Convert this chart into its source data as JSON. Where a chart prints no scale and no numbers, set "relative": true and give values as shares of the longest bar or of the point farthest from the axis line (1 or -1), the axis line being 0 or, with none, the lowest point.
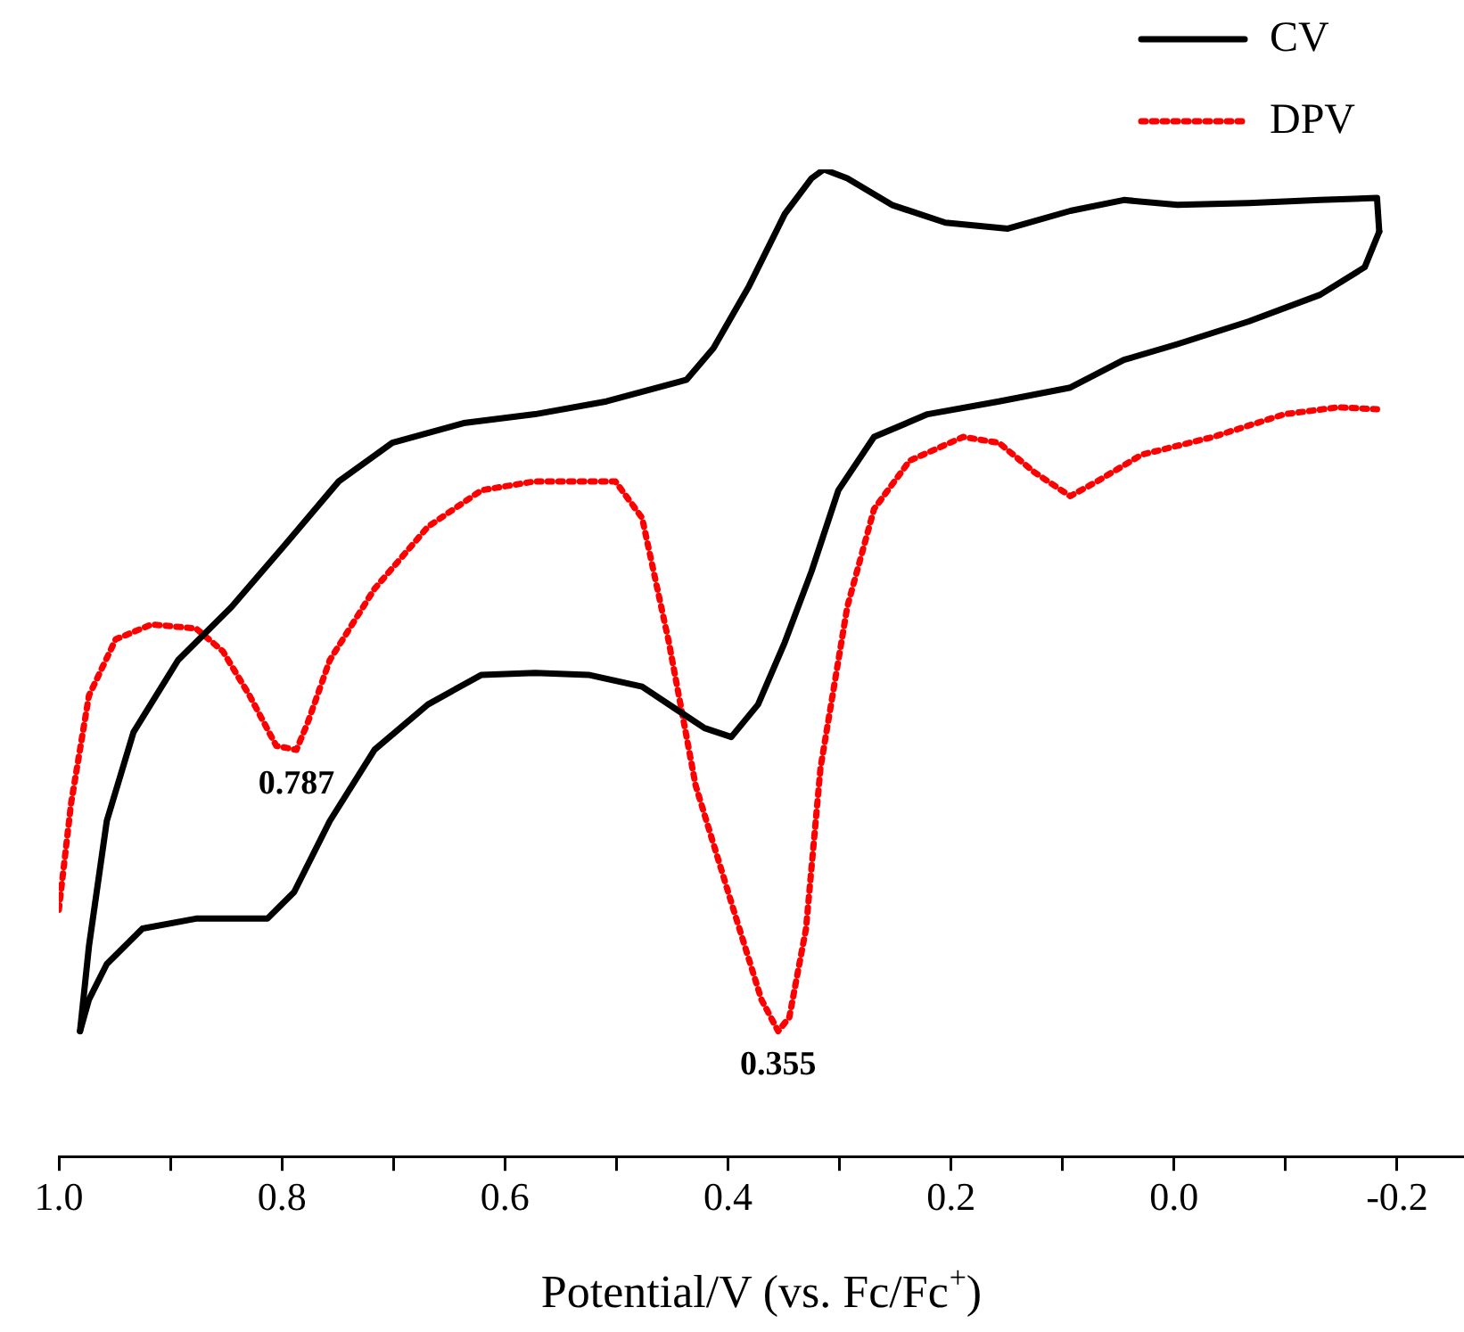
{
  "chart_data": {
    "type": "line",
    "relative": true,
    "xlabel": "Potential/V (vs. Fc/Fc$^{+}$)",
    "xlim": [
      1.0,
      -0.26
    ],
    "xticks": [
      {
        "value": 1.0,
        "label": "1.0"
      },
      {
        "value": 0.9,
        "label": null
      },
      {
        "value": 0.8,
        "label": "0.8"
      },
      {
        "value": 0.7,
        "label": null
      },
      {
        "value": 0.6,
        "label": "0.6"
      },
      {
        "value": 0.5,
        "label": null
      },
      {
        "value": 0.4,
        "label": "0.4"
      },
      {
        "value": 0.3,
        "label": null
      },
      {
        "value": 0.2,
        "label": "0.2"
      },
      {
        "value": 0.1,
        "label": null
      },
      {
        "value": 0.0,
        "label": "0.0"
      },
      {
        "value": -0.1,
        "label": null
      },
      {
        "value": -0.2,
        "label": "-0.2"
      }
    ],
    "tick_labels": "x",
    "grid": false,
    "legend": "top right",
    "marker": "none",
    "series": [
      {
        "name": "CV",
        "color": "#000000",
        "line_style": "solid",
        "x": [
          0.981,
          0.973,
          0.957,
          0.933,
          0.893,
          0.845,
          0.797,
          0.749,
          0.701,
          0.637,
          0.573,
          0.509,
          0.437,
          0.413,
          0.381,
          0.349,
          0.325,
          0.314,
          0.293,
          0.253,
          0.205,
          0.149,
          0.093,
          0.045,
          -0.003,
          -0.067,
          -0.131,
          -0.182,
          -0.184
        ],
        "values": [
          0.127,
          0.213,
          0.34,
          0.43,
          0.503,
          0.557,
          0.62,
          0.684,
          0.723,
          0.743,
          0.752,
          0.765,
          0.787,
          0.819,
          0.882,
          0.955,
          0.991,
          1,
          0.991,
          0.964,
          0.946,
          0.94,
          0.958,
          0.969,
          0.964,
          0.966,
          0.969,
          0.971,
          0.937
        ]
      },
      {
        "color": "#000000",
        "line_style": "solid",
        "x": [
          -0.184,
          -0.171,
          -0.131,
          -0.067,
          -0.003,
          0.045,
          0.093,
          0.157,
          0.221,
          0.269,
          0.301,
          0.325,
          0.349,
          0.373,
          0.397,
          0.421,
          0.445,
          0.477,
          0.525,
          0.573,
          0.621,
          0.669,
          0.717,
          0.757,
          0.789,
          0.813,
          0.837,
          0.877,
          0.925,
          0.957,
          0.973,
          0.981
        ],
        "values": [
          0.937,
          0.901,
          0.873,
          0.846,
          0.823,
          0.807,
          0.779,
          0.765,
          0.752,
          0.729,
          0.675,
          0.593,
          0.521,
          0.458,
          0.425,
          0.434,
          0.452,
          0.476,
          0.488,
          0.49,
          0.488,
          0.458,
          0.412,
          0.34,
          0.268,
          0.241,
          0.241,
          0.241,
          0.231,
          0.195,
          0.159,
          0.127
        ]
      },
      {
        "name": "DPV",
        "color": "#ff0000",
        "line_style": "dotted",
        "x": [
          1.0,
          0.989,
          0.973,
          0.949,
          0.917,
          0.877,
          0.853,
          0.829,
          0.805,
          0.787,
          0.777,
          0.757,
          0.717,
          0.669,
          0.621,
          0.573,
          0.501,
          0.477,
          0.453,
          0.429,
          0.395,
          0.37,
          0.355,
          0.345,
          0.33,
          0.317,
          0.293,
          0.269,
          0.237,
          0.189,
          0.157,
          0.125,
          0.093,
          0.069,
          0.029,
          -0.035,
          -0.099,
          -0.147,
          -0.182
        ],
        "values": [
          0.25,
          0.358,
          0.467,
          0.524,
          0.539,
          0.535,
          0.512,
          0.467,
          0.416,
          0.412,
          0.439,
          0.503,
          0.575,
          0.638,
          0.675,
          0.684,
          0.684,
          0.647,
          0.521,
          0.376,
          0.25,
          0.159,
          0.127,
          0.141,
          0.231,
          0.394,
          0.557,
          0.656,
          0.705,
          0.729,
          0.723,
          0.693,
          0.669,
          0.684,
          0.711,
          0.729,
          0.752,
          0.759,
          0.757
        ]
      }
    ],
    "annotations": [
      {
        "text": "0.787",
        "x": 0.787,
        "y": 0.412
      },
      {
        "text": "0.355",
        "x": 0.355,
        "y": 0.127
      }
    ]
  }
}
